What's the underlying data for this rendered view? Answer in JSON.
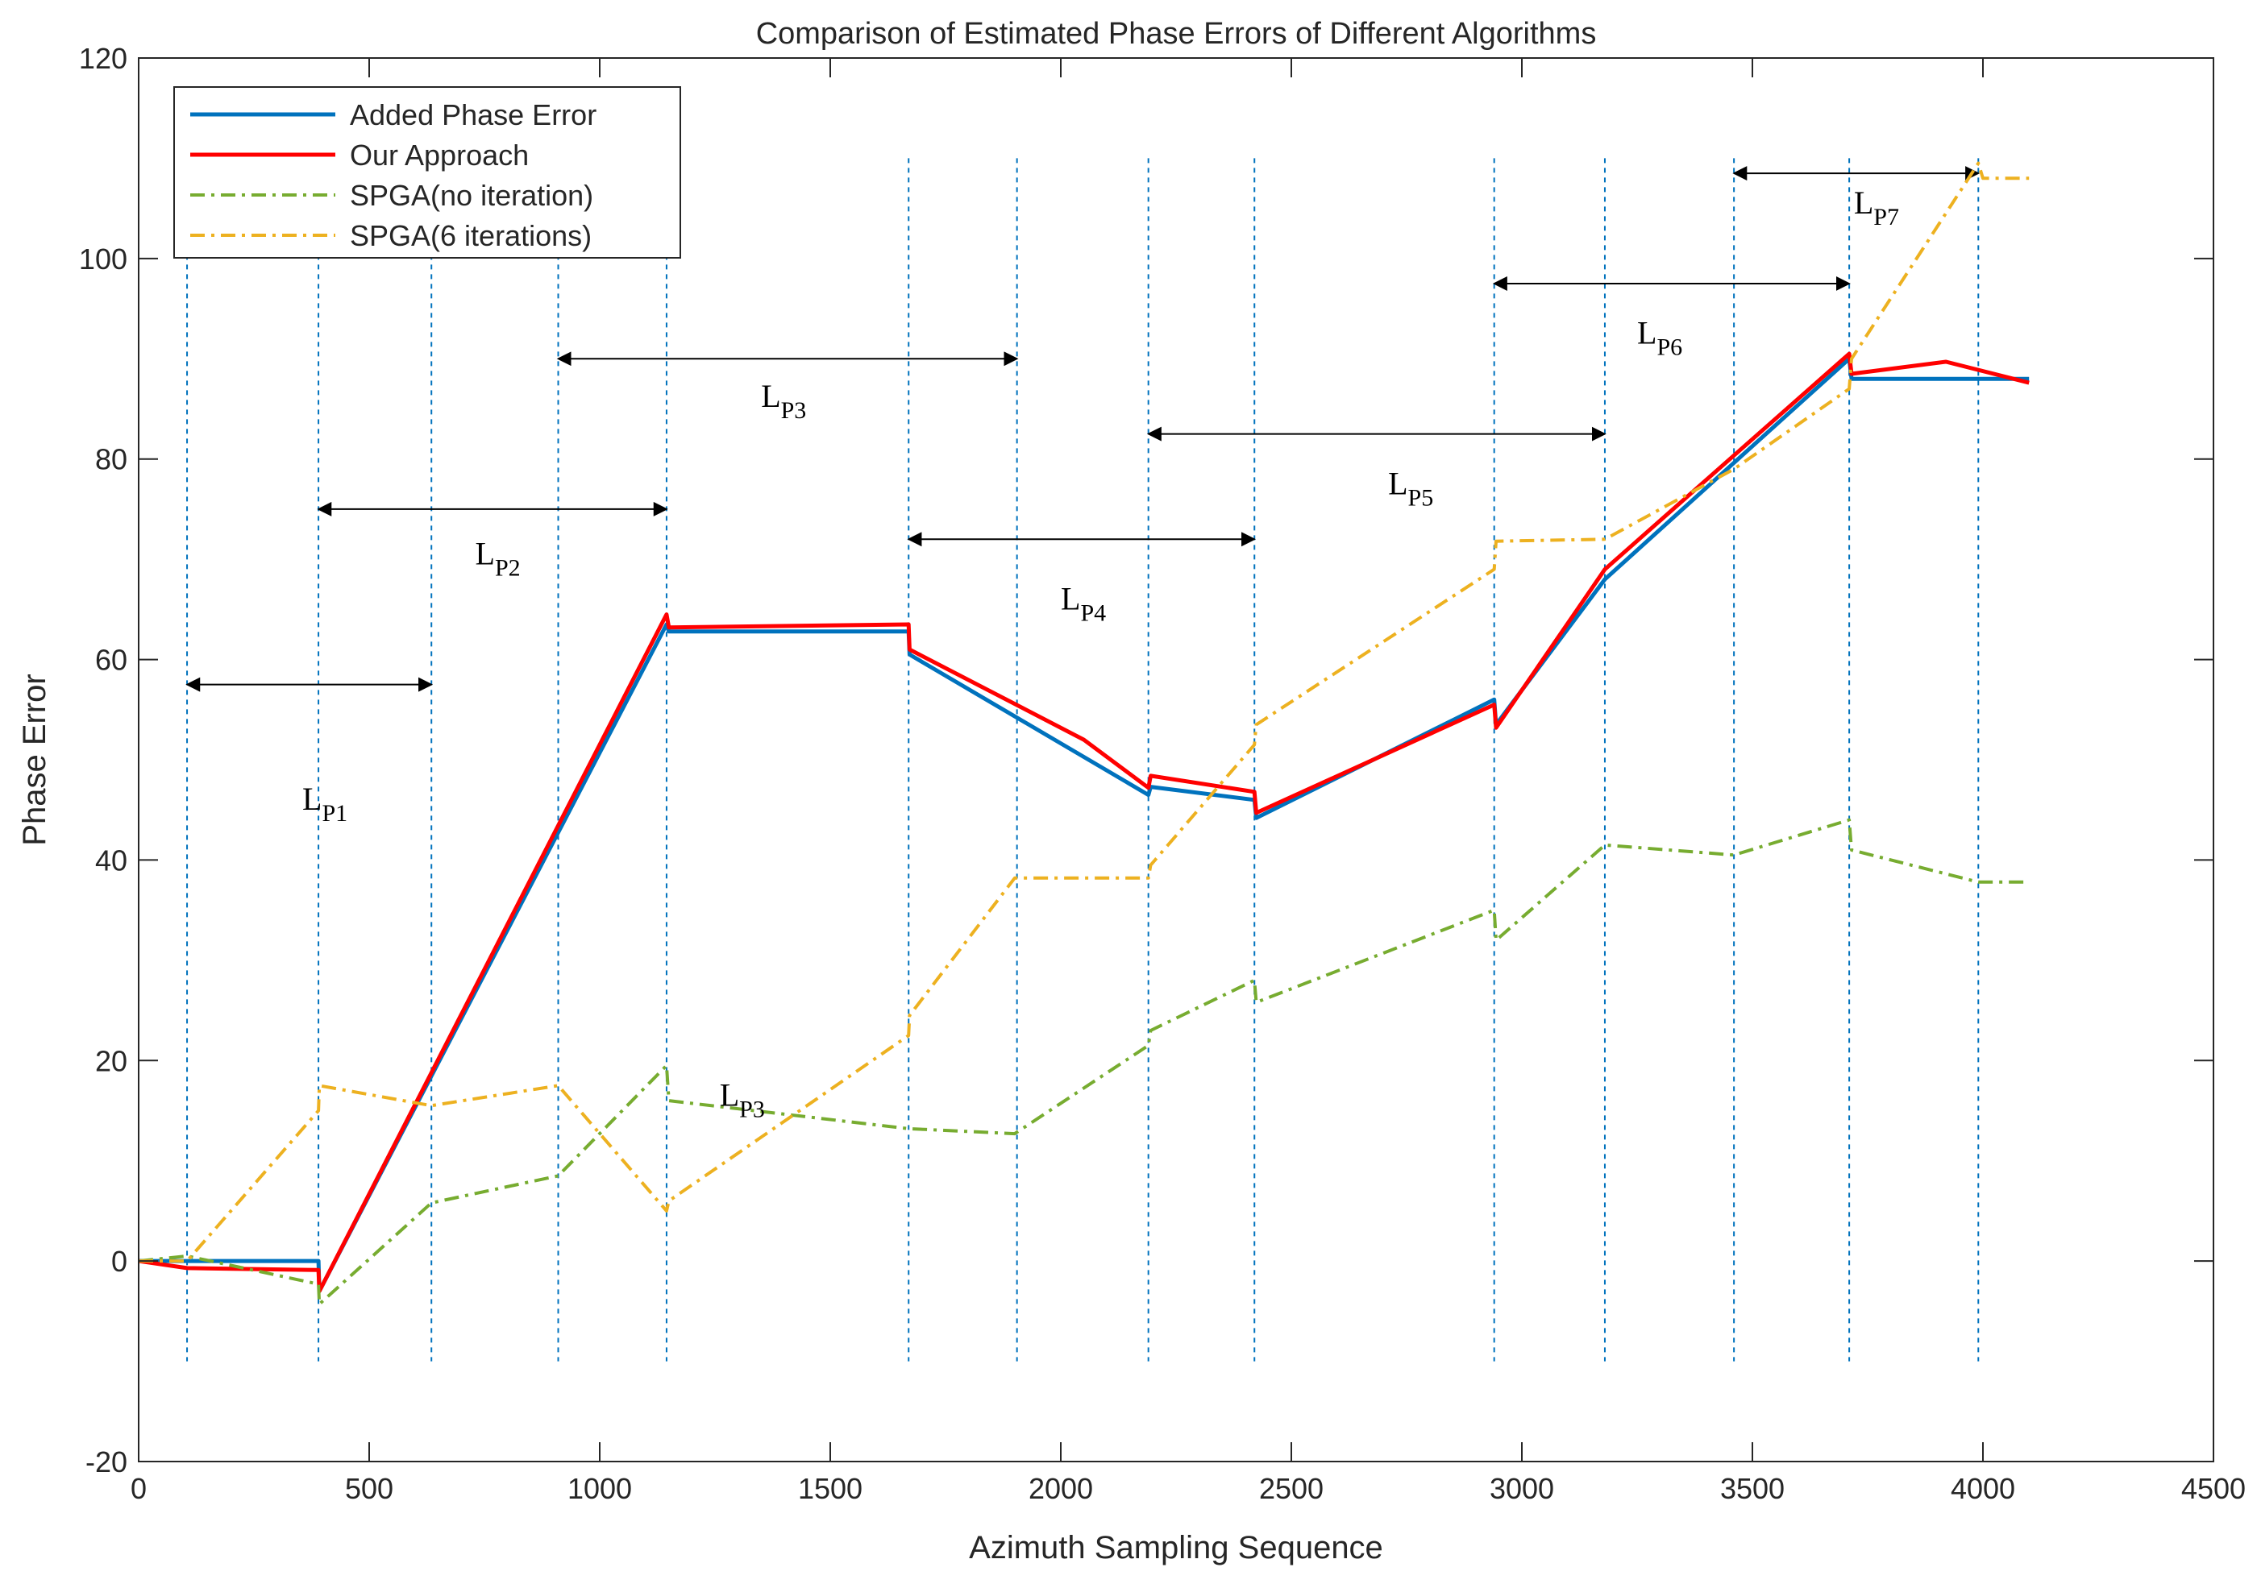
{
  "chart_data": {
    "type": "line",
    "title": "Comparison of Estimated Phase Errors of Different Algorithms",
    "xlabel": "Azimuth Sampling Sequence",
    "ylabel": "Phase Error",
    "xlim": [
      0,
      4500
    ],
    "ylim": [
      -20,
      120
    ],
    "xticks": [
      0,
      500,
      1000,
      1500,
      2000,
      2500,
      3000,
      3500,
      4000,
      4500
    ],
    "xtick_labels": [
      "0",
      "500",
      "1000",
      "1500",
      "2000",
      "2500",
      "3000",
      "3500",
      "4000",
      "4500"
    ],
    "yticks": [
      -20,
      0,
      20,
      40,
      60,
      80,
      100,
      120
    ],
    "ytick_labels": [
      "-20",
      "0",
      "20",
      "40",
      "60",
      "80",
      "100",
      "120"
    ],
    "grid": false,
    "legend_position": "top-left",
    "series": [
      {
        "name": "Added Phase Error",
        "color": "#0072BD",
        "style": "solid",
        "x": [
          0,
          105,
          390,
          392,
          1145,
          1150,
          1670,
          1672,
          2190,
          2195,
          2420,
          2424,
          2940,
          2944,
          3180,
          3710,
          3715,
          4100
        ],
        "y": [
          0,
          0,
          0,
          -3,
          63.5,
          62.8,
          62.8,
          60.5,
          46.5,
          47.3,
          46,
          44.2,
          56,
          53.5,
          68,
          90,
          88,
          88
        ]
      },
      {
        "name": "Our Approach",
        "color": "#FF0000",
        "style": "solid",
        "x": [
          0,
          105,
          390,
          392,
          1145,
          1150,
          1670,
          1672,
          2050,
          2190,
          2195,
          2420,
          2424,
          2940,
          2944,
          3180,
          3710,
          3715,
          3920,
          4100
        ],
        "y": [
          0,
          -0.7,
          -0.9,
          -3,
          64.5,
          63.2,
          63.5,
          61,
          52,
          47.2,
          48.4,
          46.8,
          44.7,
          55.5,
          53.2,
          69,
          90.5,
          88.5,
          89.7,
          87.6
        ]
      },
      {
        "name": "SPGA(no iteration)",
        "color": "#77AC30",
        "style": "dashdot",
        "x": [
          0,
          105,
          390,
          392,
          635,
          910,
          1145,
          1150,
          1670,
          1672,
          1900,
          2190,
          2195,
          2420,
          2424,
          2940,
          2944,
          3180,
          3460,
          3710,
          3715,
          3990,
          4100
        ],
        "y": [
          0,
          0.5,
          -2.3,
          -4.3,
          5.8,
          8.5,
          19.5,
          16,
          13.2,
          13.2,
          12.7,
          21.5,
          23,
          28,
          25.8,
          35,
          32,
          41.5,
          40.5,
          44,
          41,
          37.8,
          37.8
        ]
      },
      {
        "name": "SPGA(6 iterations)",
        "color": "#EDB120",
        "style": "dashdot",
        "x": [
          0,
          105,
          390,
          392,
          635,
          910,
          1145,
          1150,
          1670,
          1672,
          1900,
          2190,
          2195,
          2420,
          2424,
          2940,
          2944,
          3180,
          3460,
          3710,
          3715,
          3990,
          4000,
          4100
        ],
        "y": [
          0,
          0,
          15,
          17.5,
          15.5,
          17.5,
          5,
          6,
          22.5,
          24.5,
          38.2,
          38.2,
          39.5,
          51.5,
          53.5,
          69,
          71.8,
          72,
          79,
          87,
          90,
          109.5,
          108,
          108
        ]
      }
    ],
    "vertical_dashed_lines_x": [
      105,
      390,
      635,
      910,
      1145,
      1670,
      1905,
      2190,
      2420,
      2940,
      3180,
      3460,
      3710,
      3990
    ],
    "interval_arrows": [
      {
        "x1": 105,
        "x2": 635,
        "y": 57.5
      },
      {
        "x1": 390,
        "x2": 1145,
        "y": 75
      },
      {
        "x1": 910,
        "x2": 1905,
        "y": 90
      },
      {
        "x1": 1670,
        "x2": 2420,
        "y": 72
      },
      {
        "x1": 2190,
        "x2": 3180,
        "y": 82.5
      },
      {
        "x1": 2940,
        "x2": 3710,
        "y": 97.5
      },
      {
        "x1": 3460,
        "x2": 3990,
        "y": 108.5
      }
    ],
    "annotations": [
      {
        "main": "L",
        "sub": "P1",
        "x": 355,
        "y": 45
      },
      {
        "main": "L",
        "sub": "P2",
        "x": 730,
        "y": 69.5
      },
      {
        "main": "L",
        "sub": "P3",
        "x": 1350,
        "y": 85.2
      },
      {
        "main": "L",
        "sub": "P4",
        "x": 2000,
        "y": 65
      },
      {
        "main": "L",
        "sub": "P5",
        "x": 2710,
        "y": 76.5
      },
      {
        "main": "L",
        "sub": "P6",
        "x": 3250,
        "y": 91.5
      },
      {
        "main": "L",
        "sub": "P7",
        "x": 3720,
        "y": 104.5
      },
      {
        "main": "L",
        "sub": "P3",
        "x": 1260,
        "y": 15.5
      }
    ]
  }
}
